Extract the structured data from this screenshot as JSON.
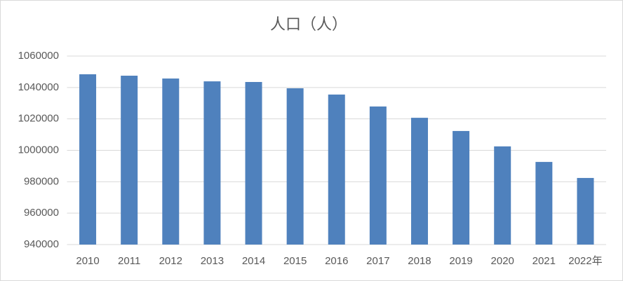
{
  "chart_data": {
    "type": "bar",
    "title": "人口（人）",
    "categories": [
      "2010",
      "2011",
      "2012",
      "2013",
      "2014",
      "2015",
      "2016",
      "2017",
      "2018",
      "2019",
      "2020",
      "2021",
      "2022年"
    ],
    "values": [
      1048400,
      1047500,
      1045700,
      1043900,
      1043500,
      1039500,
      1035500,
      1027900,
      1020700,
      1012300,
      1002500,
      992600,
      982400
    ],
    "color": "#4f81bd",
    "ylim": [
      940000,
      1060000
    ],
    "yticks": [
      940000,
      960000,
      980000,
      1000000,
      1020000,
      1040000,
      1060000
    ],
    "grid": true
  }
}
